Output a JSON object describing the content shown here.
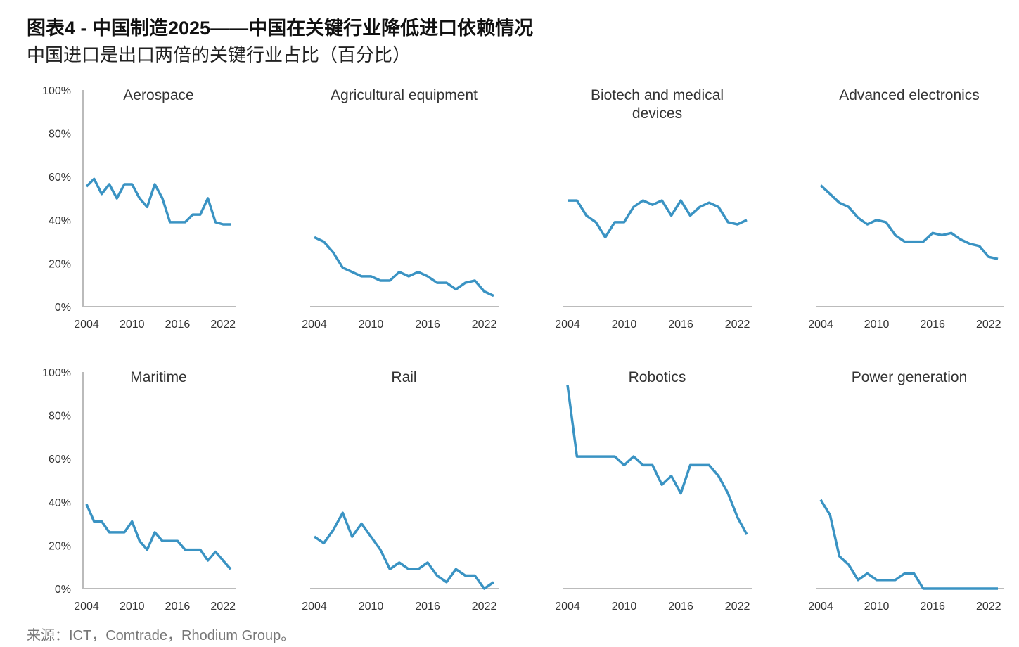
{
  "header": {
    "title": "图表4 - 中国制造2025——中国在关键行业降低进口依赖情况",
    "subtitle": "中国进口是出口两倍的关键行业占比（百分比）"
  },
  "source": "来源：ICT，Comtrade，Rhodium Group。",
  "chart_data": [
    {
      "type": "line",
      "title": "Aerospace",
      "x": [
        2004,
        2005,
        2006,
        2007,
        2008,
        2009,
        2010,
        2011,
        2012,
        2013,
        2014,
        2015,
        2016,
        2017,
        2018,
        2019,
        2020,
        2021,
        2022,
        2023
      ],
      "xlim": [
        2004,
        2023
      ],
      "xticks": [
        2004,
        2010,
        2016,
        2022
      ],
      "ylim": [
        0,
        100
      ],
      "yticks": [
        {
          "value": 0,
          "label": "0%"
        },
        {
          "value": 20,
          "label": "20%"
        },
        {
          "value": 40,
          "label": "40%"
        },
        {
          "value": 60,
          "label": "60%"
        },
        {
          "value": 80,
          "label": "80%"
        },
        {
          "value": 100,
          "label": "100%"
        }
      ],
      "series": [
        {
          "color": "#3a93c3",
          "values": [
            55.5,
            59,
            52,
            56.5,
            50,
            56.5,
            56.5,
            50,
            46,
            56.5,
            50,
            39,
            39,
            39,
            42.5,
            42.5,
            50,
            39,
            38,
            38
          ]
        }
      ]
    },
    {
      "type": "line",
      "title": "Agricultural equipment",
      "x": [
        2004,
        2005,
        2006,
        2007,
        2008,
        2009,
        2010,
        2011,
        2012,
        2013,
        2014,
        2015,
        2016,
        2017,
        2018,
        2019,
        2020,
        2021,
        2022,
        2023
      ],
      "xlim": [
        2004,
        2023
      ],
      "xticks": [
        2004,
        2010,
        2016,
        2022
      ],
      "ylim": [
        0,
        100
      ],
      "series": [
        {
          "color": "#3a93c3",
          "values": [
            32,
            30,
            25,
            18,
            16,
            14,
            14,
            12,
            12,
            16,
            14,
            16,
            14,
            11,
            11,
            8,
            11,
            12,
            7,
            5
          ]
        }
      ]
    },
    {
      "type": "line",
      "title": "Biotech and medical devices",
      "x": [
        2004,
        2005,
        2006,
        2007,
        2008,
        2009,
        2010,
        2011,
        2012,
        2013,
        2014,
        2015,
        2016,
        2017,
        2018,
        2019,
        2020,
        2021,
        2022,
        2023
      ],
      "xlim": [
        2004,
        2023
      ],
      "xticks": [
        2004,
        2010,
        2016,
        2022
      ],
      "ylim": [
        0,
        100
      ],
      "series": [
        {
          "color": "#3a93c3",
          "values": [
            49,
            49,
            42,
            39,
            32,
            39,
            39,
            46,
            49,
            47,
            49,
            42,
            49,
            42,
            46,
            48,
            46,
            39,
            38,
            40
          ]
        }
      ]
    },
    {
      "type": "line",
      "title": "Advanced electronics",
      "x": [
        2004,
        2005,
        2006,
        2007,
        2008,
        2009,
        2010,
        2011,
        2012,
        2013,
        2014,
        2015,
        2016,
        2017,
        2018,
        2019,
        2020,
        2021,
        2022,
        2023
      ],
      "xlim": [
        2004,
        2023
      ],
      "xticks": [
        2004,
        2010,
        2016,
        2022
      ],
      "ylim": [
        0,
        100
      ],
      "series": [
        {
          "color": "#3a93c3",
          "values": [
            56,
            52,
            48,
            46,
            41,
            38,
            40,
            39,
            33,
            30,
            30,
            30,
            34,
            33,
            34,
            31,
            29,
            28,
            23,
            22
          ]
        }
      ]
    },
    {
      "type": "line",
      "title": "Maritime",
      "x": [
        2004,
        2005,
        2006,
        2007,
        2008,
        2009,
        2010,
        2011,
        2012,
        2013,
        2014,
        2015,
        2016,
        2017,
        2018,
        2019,
        2020,
        2021,
        2022,
        2023
      ],
      "xlim": [
        2004,
        2023
      ],
      "xticks": [
        2004,
        2010,
        2016,
        2022
      ],
      "ylim": [
        0,
        100
      ],
      "yticks": [
        {
          "value": 0,
          "label": "0%"
        },
        {
          "value": 20,
          "label": "20%"
        },
        {
          "value": 40,
          "label": "40%"
        },
        {
          "value": 60,
          "label": "60%"
        },
        {
          "value": 80,
          "label": "80%"
        },
        {
          "value": 100,
          "label": "100%"
        }
      ],
      "series": [
        {
          "color": "#3a93c3",
          "values": [
            39,
            31,
            31,
            26,
            26,
            26,
            31,
            22,
            18,
            26,
            22,
            22,
            22,
            18,
            18,
            18,
            13,
            17,
            13,
            9
          ]
        }
      ]
    },
    {
      "type": "line",
      "title": "Rail",
      "x": [
        2004,
        2005,
        2006,
        2007,
        2008,
        2009,
        2010,
        2011,
        2012,
        2013,
        2014,
        2015,
        2016,
        2017,
        2018,
        2019,
        2020,
        2021,
        2022,
        2023
      ],
      "xlim": [
        2004,
        2023
      ],
      "xticks": [
        2004,
        2010,
        2016,
        2022
      ],
      "ylim": [
        0,
        100
      ],
      "series": [
        {
          "color": "#3a93c3",
          "values": [
            24,
            21,
            27,
            35,
            24,
            30,
            24,
            18,
            9,
            12,
            9,
            9,
            12,
            6,
            3,
            9,
            6,
            6,
            0,
            3
          ]
        }
      ]
    },
    {
      "type": "line",
      "title": "Robotics",
      "x": [
        2004,
        2005,
        2006,
        2007,
        2008,
        2009,
        2010,
        2011,
        2012,
        2013,
        2014,
        2015,
        2016,
        2017,
        2018,
        2019,
        2020,
        2021,
        2022,
        2023
      ],
      "xlim": [
        2004,
        2023
      ],
      "xticks": [
        2004,
        2010,
        2016,
        2022
      ],
      "ylim": [
        0,
        100
      ],
      "series": [
        {
          "color": "#3a93c3",
          "values": [
            94,
            61,
            61,
            61,
            61,
            61,
            57,
            61,
            57,
            57,
            48,
            52,
            44,
            57,
            57,
            57,
            52,
            44,
            33,
            25
          ]
        }
      ]
    },
    {
      "type": "line",
      "title": "Power generation",
      "x": [
        2004,
        2005,
        2006,
        2007,
        2008,
        2009,
        2010,
        2011,
        2012,
        2013,
        2014,
        2015,
        2016,
        2017,
        2018,
        2019,
        2020,
        2021,
        2022,
        2023
      ],
      "xlim": [
        2004,
        2023
      ],
      "xticks": [
        2004,
        2010,
        2016,
        2022
      ],
      "ylim": [
        0,
        100
      ],
      "series": [
        {
          "color": "#3a93c3",
          "values": [
            41,
            34,
            15,
            11,
            4,
            7,
            4,
            4,
            4,
            7,
            7,
            0,
            0,
            0,
            0,
            0,
            0,
            0,
            0,
            0
          ]
        }
      ]
    }
  ]
}
